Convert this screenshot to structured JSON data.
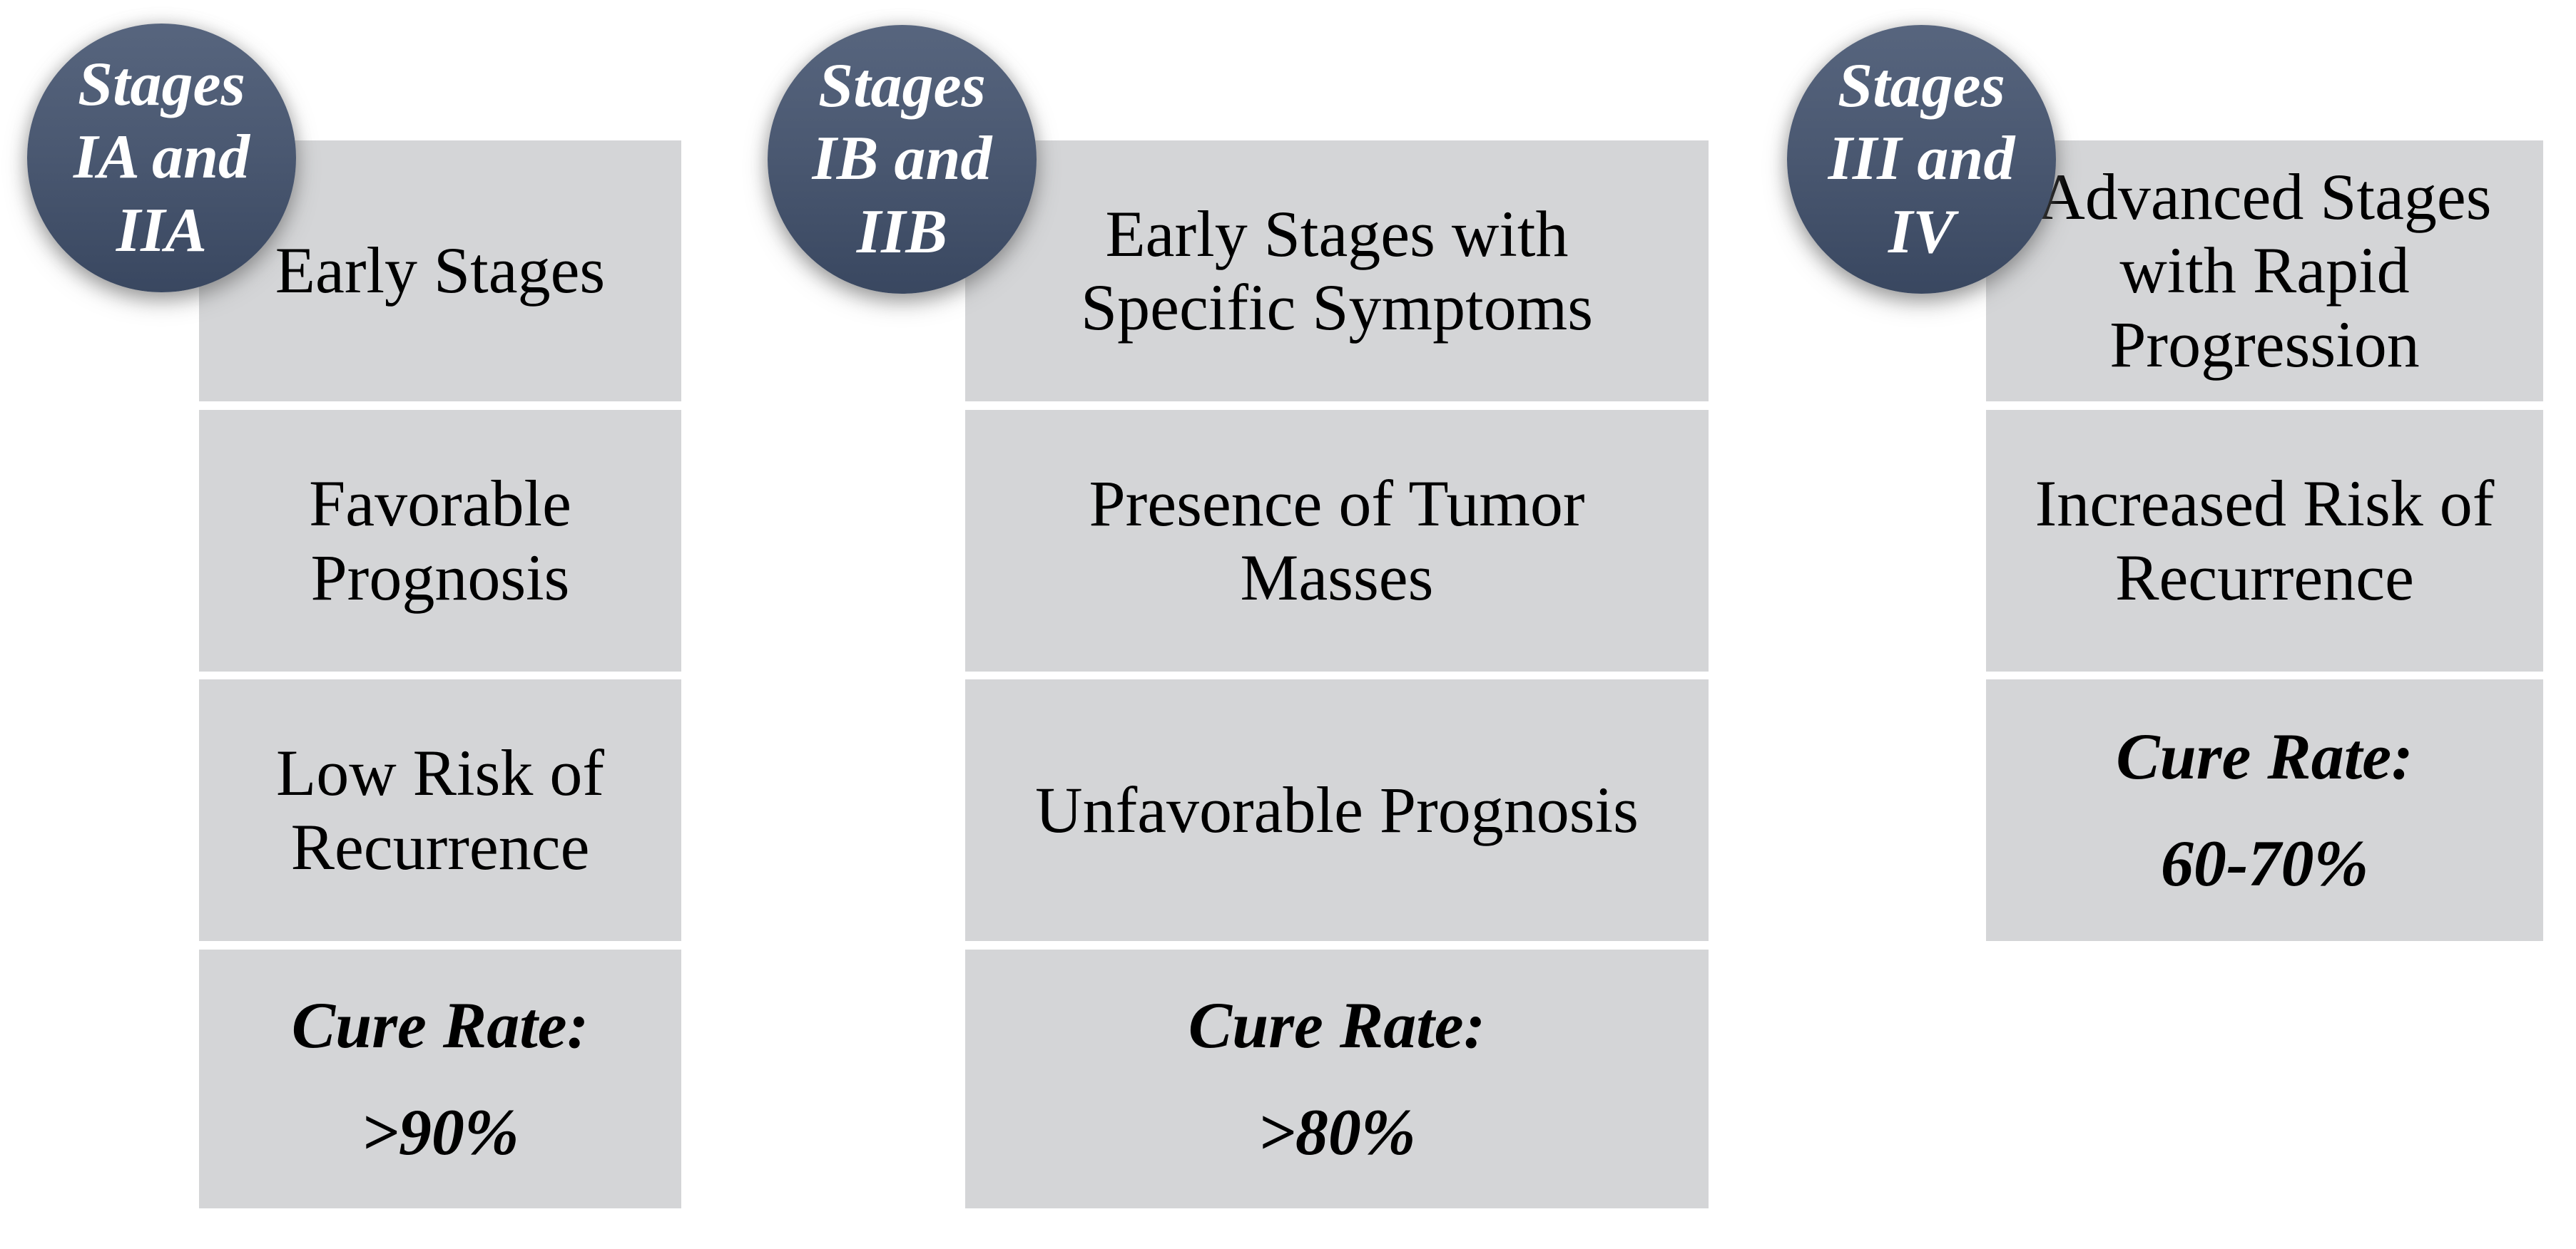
{
  "colors": {
    "background": "#ffffff",
    "box_fill": "#d4d5d7",
    "box_text": "#000000",
    "circle_gradient_top": "#57657e",
    "circle_gradient_bottom": "#394760",
    "circle_text": "#ffffff"
  },
  "columns": [
    {
      "stage_label": "Stages\nIA and\nIIA",
      "boxes": [
        {
          "text": "Early Stages"
        },
        {
          "text": "Favorable\nPrognosis"
        },
        {
          "text": "Low Risk of\nRecurrence"
        }
      ],
      "cure": {
        "label": "Cure Rate:",
        "value": ">90%"
      }
    },
    {
      "stage_label": "Stages\nIB and\nIIB",
      "boxes": [
        {
          "text": "Early Stages with\nSpecific Symptoms"
        },
        {
          "text": "Presence of Tumor\nMasses"
        },
        {
          "text": "Unfavorable Prognosis"
        }
      ],
      "cure": {
        "label": "Cure Rate:",
        "value": ">80%"
      }
    },
    {
      "stage_label": "Stages\nIII and\nIV",
      "boxes": [
        {
          "text": "Advanced Stages\nwith Rapid\nProgression"
        },
        {
          "text": "Increased Risk of\nRecurrence"
        }
      ],
      "cure": {
        "label": "Cure Rate:",
        "value": "60-70%"
      }
    }
  ]
}
